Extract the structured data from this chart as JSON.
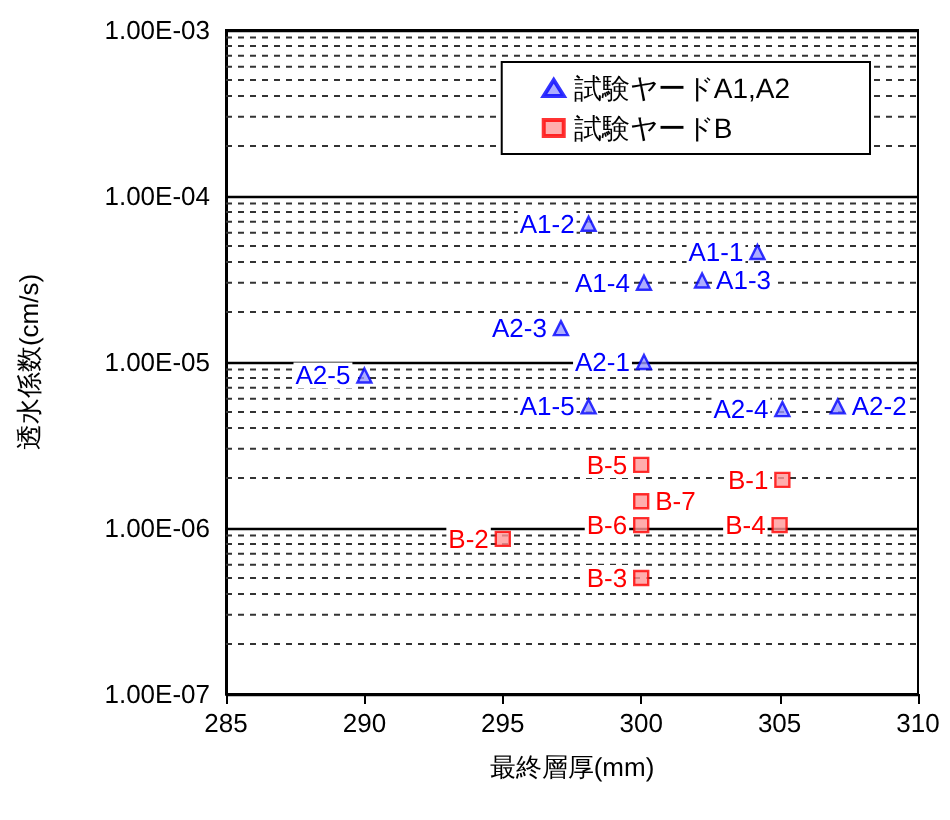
{
  "chart_data": {
    "type": "scatter",
    "xlabel": "最終層厚(mm)",
    "ylabel": "透水係数(cm/s)",
    "log": "y",
    "grid": "y",
    "legend": "top right",
    "xlim": [
      285,
      310
    ],
    "xticks": [
      285,
      290,
      295,
      300,
      305,
      310
    ],
    "ylim": [
      1e-07,
      0.001
    ],
    "yticks": [
      {
        "value": 1e-07,
        "label": "1.00E-07"
      },
      {
        "value": 1e-06,
        "label": "1.00E-06"
      },
      {
        "value": 1e-05,
        "label": "1.00E-05"
      },
      {
        "value": 0.0001,
        "label": "1.00E-04"
      },
      {
        "value": 0.001,
        "label": "1.00E-03"
      }
    ],
    "series": [
      {
        "name": "試験ヤードA1,A2",
        "color": "#0000ff",
        "marker": "triangle",
        "x": [
          304.2,
          298.1,
          302.2,
          300.1,
          298.1,
          300.1,
          307.1,
          297.1,
          305.1,
          290.0
        ],
        "values": [
          4.6e-05,
          6.8e-05,
          3.1e-05,
          3e-05,
          5.4e-06,
          1e-05,
          5.4e-06,
          1.6e-05,
          5.2e-06,
          8.3e-06
        ]
      },
      {
        "name": "試験ヤードB",
        "color": "#ff0000",
        "marker": "square",
        "x": [
          305.1,
          295.0,
          300.0,
          305.0,
          300.0,
          300.0,
          300.0
        ],
        "values": [
          1.95e-06,
          8.6e-07,
          5e-07,
          1.04e-06,
          2.4e-06,
          1.04e-06,
          1.45e-06
        ]
      }
    ],
    "annotations": [
      {
        "text": "A1-1",
        "x": 304.2,
        "y": 4.6e-05
      },
      {
        "text": "A1-2",
        "x": 298.1,
        "y": 6.8e-05
      },
      {
        "text": "A1-3",
        "x": 302.2,
        "y": 3.1e-05
      },
      {
        "text": "A1-4",
        "x": 300.1,
        "y": 3e-05
      },
      {
        "text": "A1-5",
        "x": 298.1,
        "y": 5.4e-06
      },
      {
        "text": "A2-1",
        "x": 300.1,
        "y": 1e-05
      },
      {
        "text": "A2-2",
        "x": 307.1,
        "y": 5.4e-06
      },
      {
        "text": "A2-3",
        "x": 297.1,
        "y": 1.6e-05
      },
      {
        "text": "A2-4",
        "x": 305.1,
        "y": 5.2e-06
      },
      {
        "text": "A2-5",
        "x": 290.0,
        "y": 8.3e-06
      },
      {
        "text": "B-1",
        "x": 305.1,
        "y": 1.95e-06
      },
      {
        "text": "B-2",
        "x": 295.0,
        "y": 8.6e-07
      },
      {
        "text": "B-3",
        "x": 300.0,
        "y": 5e-07
      },
      {
        "text": "B-4",
        "x": 305.0,
        "y": 1.04e-06
      },
      {
        "text": "B-5",
        "x": 300.0,
        "y": 2.4e-06
      },
      {
        "text": "B-6",
        "x": 300.0,
        "y": 1.04e-06
      },
      {
        "text": "B-7",
        "x": 300.0,
        "y": 1.45e-06
      }
    ]
  }
}
